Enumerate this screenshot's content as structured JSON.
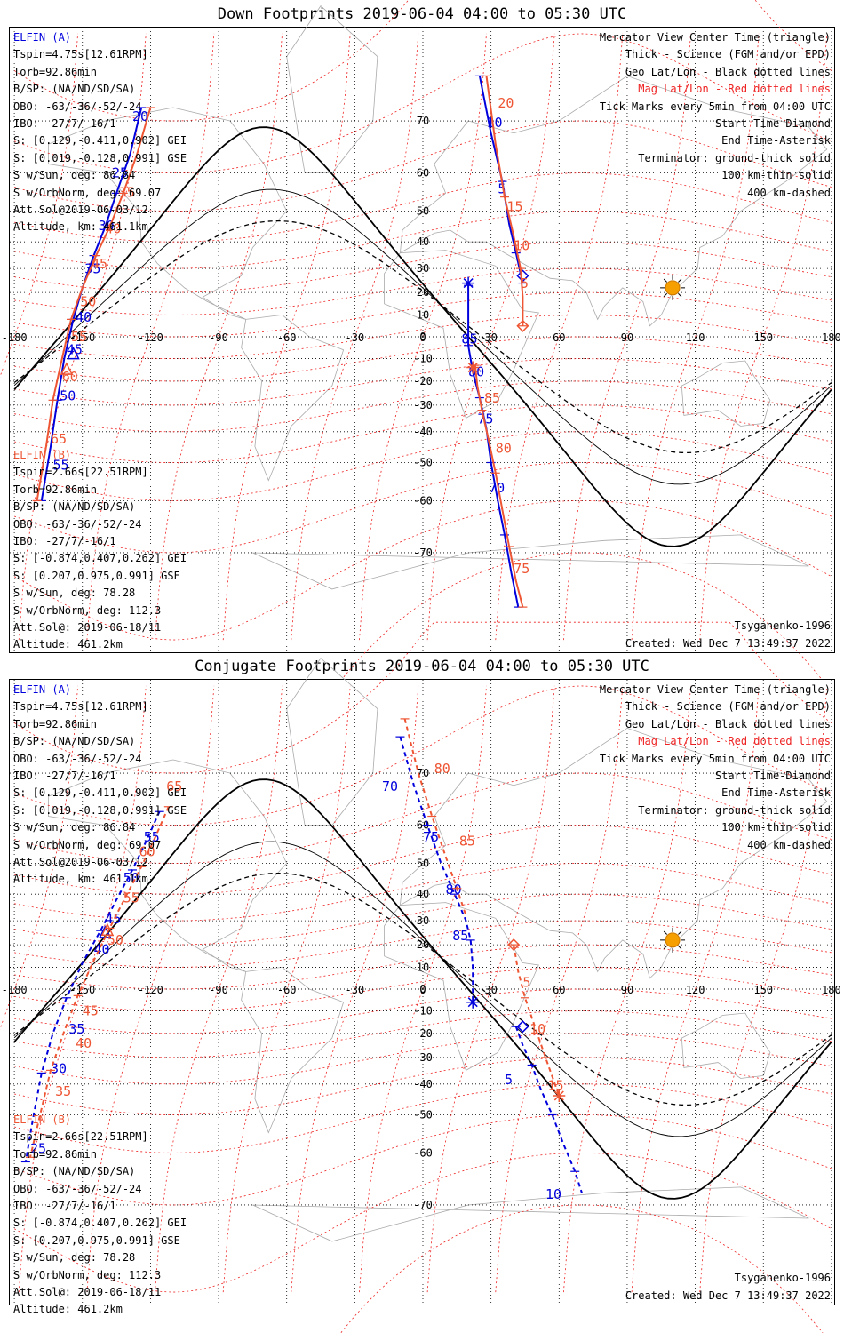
{
  "titles": [
    "Down Footprints 2019-06-04 04:00 to 05:30 UTC",
    "Conjugate Footprints 2019-06-04 04:00 to 05:30 UTC"
  ],
  "legend_right": [
    "Mercator View Center Time (triangle)",
    "Thick - Science (FGM and/or EPD)",
    "Geo Lat/Lon - Black dotted lines",
    "Mag Lat/Lon - Red dotted lines",
    "Tick Marks every 5min from 04:00 UTC",
    "Start Time-Diamond",
    "End Time-Asterisk",
    "Terminator: ground-thick solid",
    "100 km-thin solid",
    "400 km-dashed"
  ],
  "elfin_a": {
    "name": "ELFIN (A)",
    "lines": [
      "Tspin=4.75s[12.61RPM]",
      "Torb=92.86min",
      "B/SP: (NA/ND/SD/SA)",
      "OBO: -63/-36/-52/-24",
      "IBO: -27/7/-16/1",
      "S: [0.129,-0.411,0.902] GEI",
      "S: [0.019,-0.128,0.991] GSE",
      "S w/Sun, deg: 86.84",
      "S w/OrbNorm, deg: 69.07",
      "Att.Sol@2019-06-03/12",
      "Altitude, km: 461.1km"
    ]
  },
  "elfin_b": {
    "name": "ELFIN (B)",
    "lines": [
      "Tspin=2.66s[22.51RPM]",
      "Torb=92.86min",
      "B/SP: (NA/ND/SD/SA)",
      "OBO: -63/-36/-52/-24",
      "IBO: -27/7/-16/1",
      "S: [-0.874,0.407,0.262] GEI",
      "S: [0.207,0.975,0.991] GSE",
      "S w/Sun, deg: 78.28",
      "S w/OrbNorm, deg: 112.3",
      "Att.Sol@: 2019-06-18/11",
      "Altitude: 461.2km"
    ]
  },
  "model": "Tsyganenko-1996",
  "created": "Created: Wed Dec  7 13:49:37 2022",
  "colors": {
    "elfin_a": "#0000dd",
    "elfin_b": "#ee5533",
    "mag_grid": "#ee2222",
    "geo_grid": "#000000",
    "land": "#aaaaaa",
    "sun": "#f5a000"
  },
  "chart_data": [
    {
      "type": "scatter",
      "title": "Down Footprints 2019-06-04 04:00 to 05:30 UTC",
      "projection": "mercator",
      "xlim": [
        -180,
        180
      ],
      "x_ticks": [
        -180,
        -150,
        -120,
        -90,
        -60,
        -30,
        0,
        30,
        60,
        90,
        120,
        150,
        180
      ],
      "x_tick_labels": [
        "-180",
        "-150",
        "-120",
        "-90",
        "-60",
        "-30",
        "0",
        "30",
        "60",
        "90",
        "120",
        "150",
        "180"
      ],
      "y_ticks": [
        70,
        60,
        50,
        40,
        30,
        20,
        10,
        0,
        -10,
        -20,
        -30,
        -40,
        -50,
        -60,
        -70
      ],
      "y_tick_labels": [
        "70",
        "60",
        "50",
        "40",
        "30",
        "20",
        "10",
        "0",
        "-10",
        "-20",
        "-30",
        "-40",
        "-50",
        "-60",
        "-70"
      ],
      "series": [
        {
          "name": "ELFIN (A)",
          "segments": [
            {
              "lon": [
                -124,
                -129,
                -135,
                -140,
                -145,
                -150,
                -154,
                -158,
                -161,
                -164,
                -168
              ],
              "lat": [
                72,
                64,
                55,
                45,
                35,
                22,
                8,
                -10,
                -28,
                -45,
                -60
              ]
            },
            {
              "lon": [
                25,
                30,
                35,
                38,
                41,
                43,
                44
              ],
              "lat": [
                76,
                68,
                58,
                46,
                36,
                28,
                24
              ]
            },
            {
              "lon": [
                20,
                20,
                20,
                22,
                25,
                28,
                30,
                33,
                36,
                39,
                42
              ],
              "lat": [
                23,
                10,
                -4,
                -16,
                -27,
                -39,
                -50,
                -60,
                -67,
                -73,
                -77
              ]
            }
          ],
          "tick_labels": [
            {
              "text": "20",
              "lon": -128,
              "lat": 70
            },
            {
              "text": "25",
              "lon": -137,
              "lat": 59
            },
            {
              "text": "30",
              "lon": -143,
              "lat": 44
            },
            {
              "text": "35",
              "lon": -149,
              "lat": 28
            },
            {
              "text": "40",
              "lon": -153,
              "lat": 7
            },
            {
              "text": "45",
              "lon": -157,
              "lat": -8
            },
            {
              "text": "50",
              "lon": -160,
              "lat": -28
            },
            {
              "text": "55",
              "lon": -163,
              "lat": -52
            },
            {
              "text": "10",
              "lon": 28,
              "lat": 69
            },
            {
              "text": "5",
              "lon": 33,
              "lat": 55
            },
            {
              "text": "85",
              "lon": 17,
              "lat": -3
            },
            {
              "text": "80",
              "lon": 20,
              "lat": -18
            },
            {
              "text": "75",
              "lon": 24,
              "lat": -37
            },
            {
              "text": "70",
              "lon": 29,
              "lat": -58
            }
          ],
          "start": {
            "lon": 44,
            "lat": 27
          },
          "end": {
            "lon": 20,
            "lat": 24
          },
          "center": {
            "lon": -154,
            "lat": -8
          }
        },
        {
          "name": "ELFIN (B)",
          "segments": [
            {
              "lon": [
                -120,
                -126,
                -132,
                -138,
                -144,
                -150,
                -155,
                -159,
                -163,
                -166,
                -170
              ],
              "lat": [
                72,
                64,
                55,
                45,
                35,
                22,
                8,
                -10,
                -28,
                -45,
                -60
              ]
            },
            {
              "lon": [
                28,
                32,
                36,
                40,
                43,
                44,
                44
              ],
              "lat": [
                76,
                66,
                54,
                42,
                30,
                18,
                5
              ]
            },
            {
              "lon": [
                23,
                24,
                26,
                29,
                32,
                35,
                38,
                41,
                44
              ],
              "lat": [
                -13,
                -22,
                -32,
                -43,
                -53,
                -62,
                -69,
                -74,
                -77
              ]
            }
          ],
          "tick_labels": [
            {
              "text": "35",
              "lon": -134,
              "lat": 54
            },
            {
              "text": "40",
              "lon": -140,
              "lat": 43
            },
            {
              "text": "45",
              "lon": -146,
              "lat": 30
            },
            {
              "text": "50",
              "lon": -151,
              "lat": 14
            },
            {
              "text": "55",
              "lon": -155,
              "lat": -2
            },
            {
              "text": "60",
              "lon": -159,
              "lat": -20
            },
            {
              "text": "65",
              "lon": -164,
              "lat": -44
            },
            {
              "text": "20",
              "lon": 33,
              "lat": 72
            },
            {
              "text": "15",
              "lon": 37,
              "lat": 50
            },
            {
              "text": "10",
              "lon": 40,
              "lat": 37
            },
            {
              "text": "5",
              "lon": 43,
              "lat": 22
            },
            {
              "text": "85",
              "lon": 27,
              "lat": -29
            },
            {
              "text": "80",
              "lon": 32,
              "lat": -47
            },
            {
              "text": "75",
              "lon": 40,
              "lat": -73
            }
          ],
          "start": {
            "lon": 44,
            "lat": 5
          },
          "end": {
            "lon": 22,
            "lat": -14
          },
          "center": {
            "lon": -157,
            "lat": -15
          }
        }
      ],
      "sun": {
        "lon": 110,
        "lat": 22
      }
    },
    {
      "type": "scatter",
      "title": "Conjugate Footprints 2019-06-04 04:00 to 05:30 UTC",
      "projection": "mercator",
      "xlim": [
        -180,
        180
      ],
      "x_ticks": [
        -180,
        -150,
        -120,
        -90,
        -60,
        -30,
        0,
        30,
        60,
        90,
        120,
        150,
        180
      ],
      "x_tick_labels": [
        "-180",
        "-150",
        "-120",
        "-90",
        "-60",
        "-30",
        "0",
        "30",
        "60",
        "90",
        "120",
        "150",
        "180"
      ],
      "y_ticks": [
        70,
        60,
        50,
        40,
        30,
        20,
        10,
        0,
        -10,
        -20,
        -30,
        -40,
        -50,
        -60,
        -70
      ],
      "y_tick_labels": [
        "70",
        "60",
        "50",
        "40",
        "30",
        "20",
        "10",
        "0",
        "-10",
        "-20",
        "-30",
        "-40",
        "-50",
        "-60",
        "-70"
      ],
      "series": [
        {
          "name": "ELFIN (A)",
          "segments": [
            {
              "lon": [
                -116,
                -122,
                -128,
                -135,
                -142,
                -150,
                -157,
                -163,
                -168,
                -172,
                -175
              ],
              "lat": [
                63,
                56,
                48,
                38,
                26,
                12,
                -4,
                -20,
                -36,
                -52,
                -62
              ]
            },
            {
              "lon": [
                -10,
                -4,
                2,
                8,
                14,
                19,
                21,
                22,
                22
              ],
              "lat": [
                75,
                68,
                60,
                50,
                40,
                30,
                22,
                10,
                -6
              ]
            },
            {
              "lon": [
                41,
                44,
                48,
                52,
                57,
                62,
                67,
                70
              ],
              "lat": [
                -17,
                -25,
                -33,
                -42,
                -50,
                -58,
                -64,
                -68
              ]
            }
          ],
          "tick_labels": [
            {
              "text": "55",
              "lon": -123,
              "lat": 56
            },
            {
              "text": "50",
              "lon": -132,
              "lat": 44
            },
            {
              "text": "45",
              "lon": -140,
              "lat": 29
            },
            {
              "text": "40",
              "lon": -145,
              "lat": 16
            },
            {
              "text": "35",
              "lon": -156,
              "lat": -20
            },
            {
              "text": "30",
              "lon": -164,
              "lat": -36
            },
            {
              "text": "25",
              "lon": -173,
              "lat": -60
            },
            {
              "text": "70",
              "lon": -18,
              "lat": 67
            },
            {
              "text": "75",
              "lon": 0,
              "lat": 56
            },
            {
              "text": "80",
              "lon": 10,
              "lat": 40
            },
            {
              "text": "85",
              "lon": 13,
              "lat": 22
            },
            {
              "text": "5",
              "lon": 36,
              "lat": -40
            },
            {
              "text": "10",
              "lon": 54,
              "lat": -69
            }
          ],
          "start": {
            "lon": 44,
            "lat": -17
          },
          "end": {
            "lon": 22,
            "lat": -6
          },
          "center": {
            "lon": -140,
            "lat": 25
          }
        },
        {
          "name": "ELFIN (B)",
          "segments": [
            {
              "lon": [
                -112,
                -118,
                -124,
                -131,
                -138,
                -145,
                -152,
                -158,
                -164,
                -169,
                -173
              ],
              "lat": [
                64,
                57,
                49,
                39,
                27,
                13,
                -3,
                -19,
                -35,
                -51,
                -61
              ]
            },
            {
              "lon": [
                -8,
                -2,
                4,
                10,
                15,
                19
              ],
              "lat": [
                77,
                70,
                62,
                52,
                42,
                32
              ]
            },
            {
              "lon": [
                40,
                42,
                45,
                49,
                54,
                60
              ],
              "lat": [
                20,
                8,
                -4,
                -16,
                -30,
                -44
              ]
            }
          ],
          "tick_labels": [
            {
              "text": "65",
              "lon": -113,
              "lat": 67
            },
            {
              "text": "60",
              "lon": -125,
              "lat": 52
            },
            {
              "text": "55",
              "lon": -132,
              "lat": 37
            },
            {
              "text": "50",
              "lon": -139,
              "lat": 20
            },
            {
              "text": "45",
              "lon": -150,
              "lat": -12
            },
            {
              "text": "40",
              "lon": -153,
              "lat": -26
            },
            {
              "text": "35",
              "lon": -162,
              "lat": -44
            },
            {
              "text": "80",
              "lon": 5,
              "lat": 70
            },
            {
              "text": "85",
              "lon": 16,
              "lat": 55
            },
            {
              "text": "5",
              "lon": 44,
              "lat": 1
            },
            {
              "text": "10",
              "lon": 47,
              "lat": -20
            },
            {
              "text": "15",
              "lon": 55,
              "lat": -42
            }
          ],
          "start": {
            "lon": 40,
            "lat": 20
          },
          "end": {
            "lon": 60,
            "lat": -44
          },
          "center": {
            "lon": -139,
            "lat": 26
          }
        }
      ],
      "sun": {
        "lon": 110,
        "lat": 22
      }
    }
  ]
}
